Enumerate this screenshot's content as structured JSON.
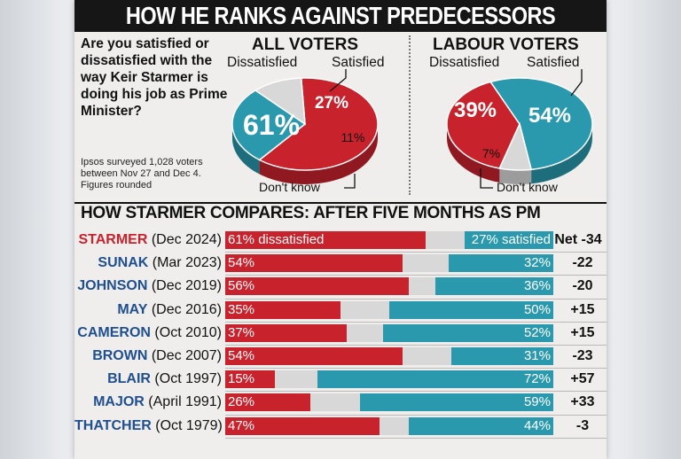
{
  "header": {
    "title": "HOW HE RANKS AGAINST PREDECESSORS"
  },
  "question": "Are you satisfied or dissatisfied with the way Keir Starmer is doing his job as Prime Minister?",
  "note": "Ipsos surveyed 1,028 voters between Nov 27 and Dec 4. Figures rounded",
  "pies": {
    "all": {
      "title": "ALL VOTERS",
      "dissatisfied_label": "Dissatisfied",
      "satisfied_label": "Satisfied",
      "dontknow_label": "Don't know",
      "dissatisfied": "61%",
      "satisfied": "27%",
      "dontknow": "11%"
    },
    "labour": {
      "title": "LABOUR VOTERS",
      "dissatisfied_label": "Dissatisfied",
      "satisfied_label": "Satisfied",
      "dontknow_label": "Don't know",
      "dissatisfied": "39%",
      "satisfied": "54%",
      "dontknow": "7%"
    }
  },
  "compare_title": "HOW STARMER COMPARES: AFTER FIVE MONTHS AS PM",
  "colors": {
    "dissatisfied": "#c8222c",
    "satisfied": "#2a98ad",
    "dontknow": "#d8d8d8",
    "banner": "#161616"
  },
  "chart_data": [
    {
      "type": "pie",
      "title": "ALL VOTERS",
      "categories": [
        "Dissatisfied",
        "Satisfied",
        "Don't know"
      ],
      "values": [
        61,
        27,
        11
      ]
    },
    {
      "type": "pie",
      "title": "LABOUR VOTERS",
      "categories": [
        "Dissatisfied",
        "Satisfied",
        "Don't know"
      ],
      "values": [
        39,
        54,
        7
      ]
    },
    {
      "type": "bar",
      "title": "HOW STARMER COMPARES: AFTER FIVE MONTHS AS PM",
      "stacked": true,
      "rows": [
        {
          "name": "STARMER",
          "date": "(Dec 2024)",
          "dissatisfied": 61,
          "satisfied": 27,
          "d_label": "61% dissatisfied",
          "s_label": "27% satisfied",
          "net": "Net -34"
        },
        {
          "name": "SUNAK",
          "date": "(Mar 2023)",
          "dissatisfied": 54,
          "satisfied": 32,
          "d_label": "54%",
          "s_label": "32%",
          "net": "-22"
        },
        {
          "name": "JOHNSON",
          "date": "(Dec 2019)",
          "dissatisfied": 56,
          "satisfied": 36,
          "d_label": "56%",
          "s_label": "36%",
          "net": "-20"
        },
        {
          "name": "MAY",
          "date": "(Dec 2016)",
          "dissatisfied": 35,
          "satisfied": 50,
          "d_label": "35%",
          "s_label": "50%",
          "net": "+15"
        },
        {
          "name": "CAMERON",
          "date": "(Oct 2010)",
          "dissatisfied": 37,
          "satisfied": 52,
          "d_label": "37%",
          "s_label": "52%",
          "net": "+15"
        },
        {
          "name": "BROWN",
          "date": "(Dec 2007)",
          "dissatisfied": 54,
          "satisfied": 31,
          "d_label": "54%",
          "s_label": "31%",
          "net": "-23"
        },
        {
          "name": "BLAIR",
          "date": "(Oct 1997)",
          "dissatisfied": 15,
          "satisfied": 72,
          "d_label": "15%",
          "s_label": "72%",
          "net": "+57"
        },
        {
          "name": "MAJOR",
          "date": "(April 1991)",
          "dissatisfied": 26,
          "satisfied": 59,
          "d_label": "26%",
          "s_label": "59%",
          "net": "+33"
        },
        {
          "name": "THATCHER",
          "date": "(Oct 1979)",
          "dissatisfied": 47,
          "satisfied": 44,
          "d_label": "47%",
          "s_label": "44%",
          "net": "-3"
        }
      ]
    }
  ]
}
